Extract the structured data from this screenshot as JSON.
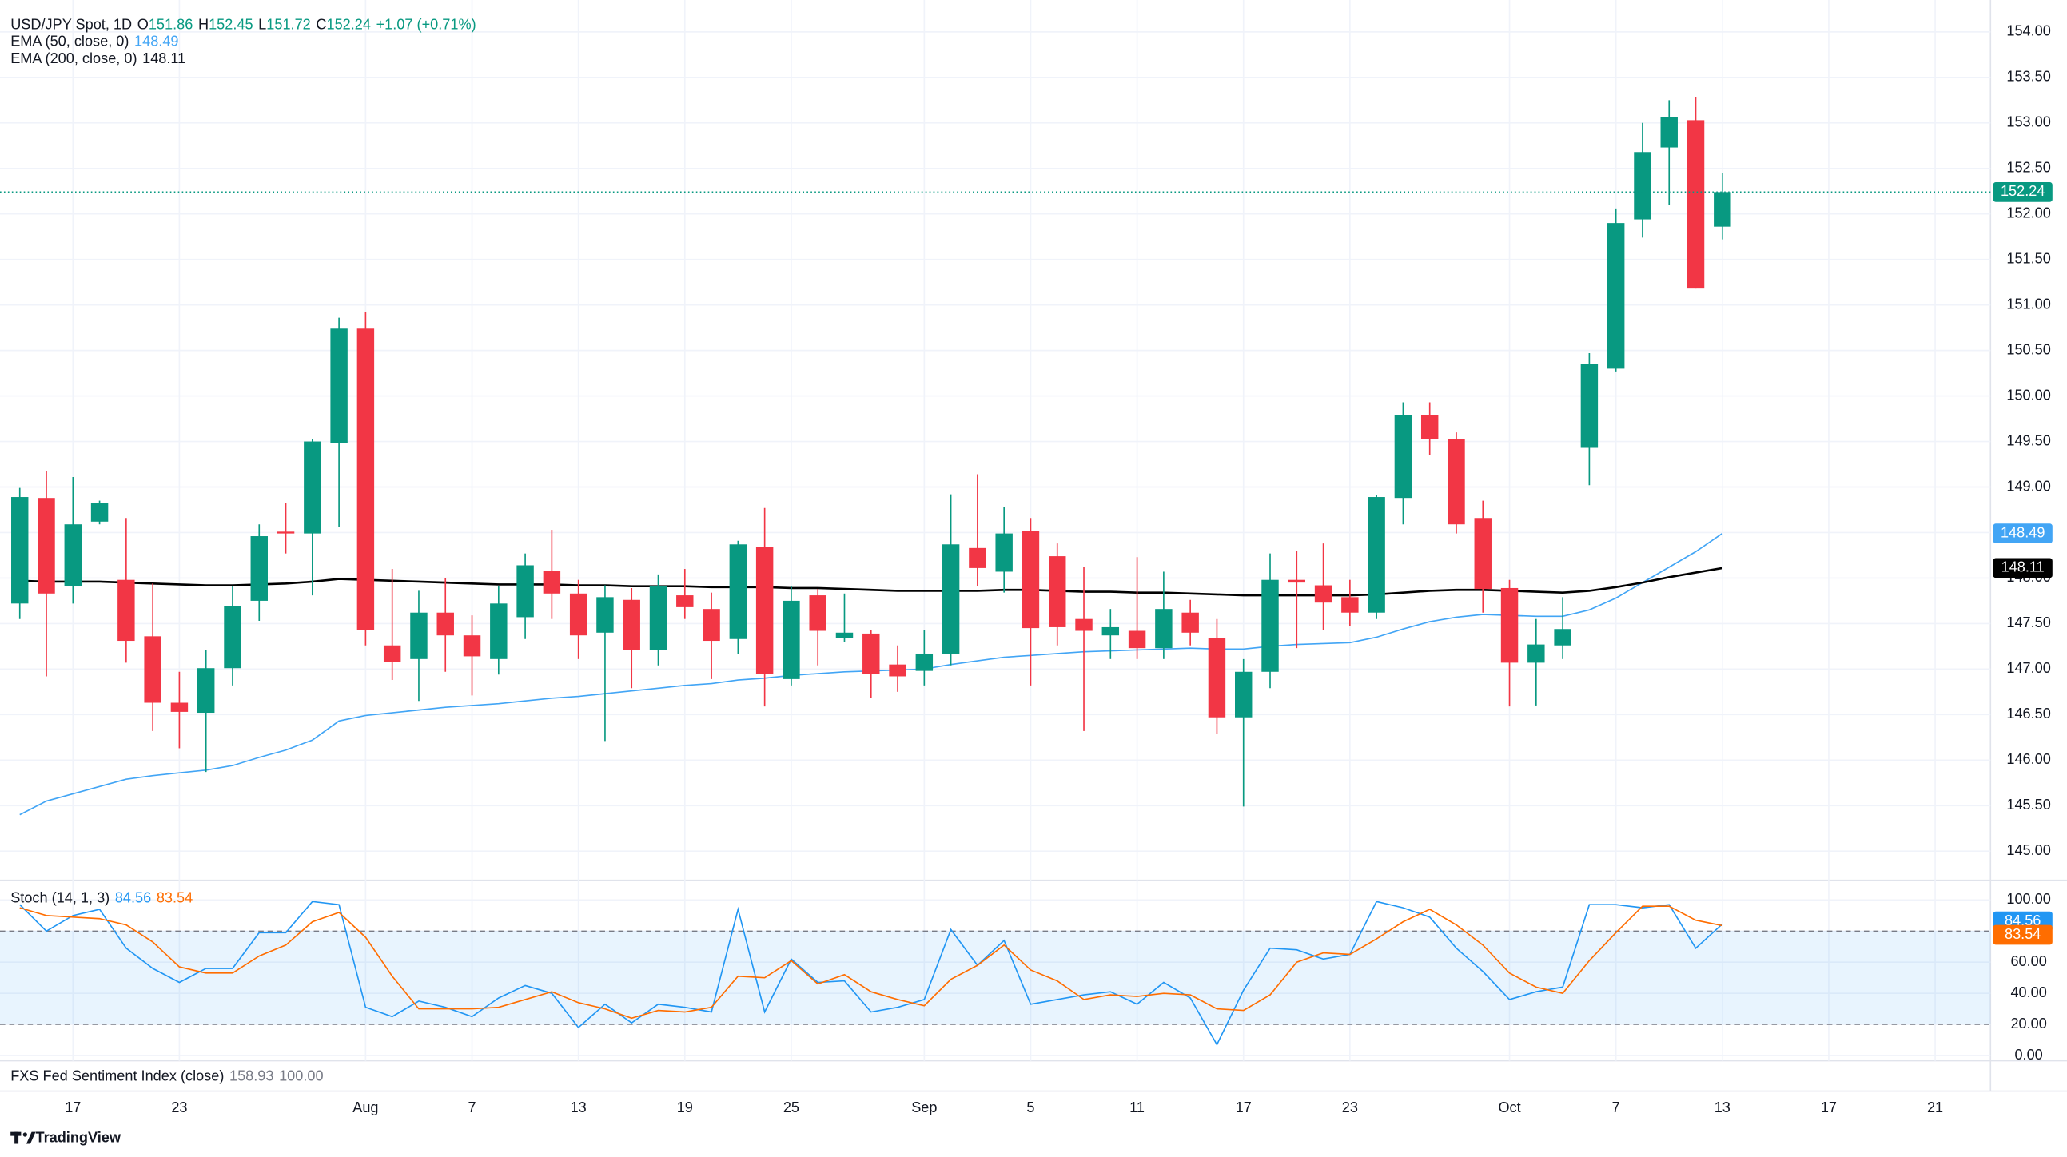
{
  "chart_data": {
    "type": "candlestick",
    "title": "USD/JPY Spot, 1D",
    "ohlc_prefixes": [
      "O",
      "H",
      "L",
      "C"
    ],
    "change": "+1.07 (+0.71%)",
    "up_color": "#089981",
    "down_color": "#f23645",
    "candles": {
      "open": [
        147.72,
        148.88,
        147.91,
        148.62,
        147.98,
        147.36,
        146.63,
        146.52,
        147.01,
        147.75,
        148.51,
        148.49,
        149.48,
        150.74,
        147.26,
        147.11,
        147.62,
        147.37,
        147.11,
        147.57,
        148.08,
        147.83,
        147.4,
        147.76,
        147.21,
        147.81,
        147.66,
        147.33,
        148.34,
        146.89,
        147.81,
        147.34,
        147.39,
        147.05,
        146.98,
        147.17,
        148.33,
        148.07,
        148.52,
        148.24,
        147.55,
        147.37,
        147.42,
        147.23,
        147.62,
        147.34,
        146.47,
        146.97,
        147.98,
        147.92,
        147.79,
        147.62,
        148.88,
        149.79,
        149.53,
        148.66,
        147.89,
        147.07,
        147.26,
        149.43,
        150.3,
        151.94,
        152.73,
        153.03,
        151.86
      ],
      "high": [
        148.99,
        149.18,
        149.11,
        148.85,
        148.66,
        147.94,
        146.97,
        147.21,
        147.91,
        148.59,
        148.82,
        149.53,
        150.86,
        150.92,
        148.1,
        147.86,
        148.0,
        147.59,
        147.91,
        148.27,
        148.53,
        147.98,
        147.92,
        147.89,
        148.04,
        148.1,
        147.84,
        148.41,
        148.77,
        147.91,
        147.88,
        147.83,
        147.43,
        147.26,
        147.43,
        148.92,
        149.14,
        148.78,
        148.66,
        148.38,
        148.12,
        147.66,
        148.23,
        148.07,
        147.76,
        147.55,
        147.11,
        148.27,
        148.3,
        148.38,
        147.98,
        148.91,
        149.93,
        149.93,
        149.6,
        148.85,
        147.98,
        147.55,
        147.79,
        150.47,
        152.06,
        153.0,
        153.25,
        153.28,
        152.45
      ],
      "low": [
        147.55,
        146.92,
        147.72,
        148.59,
        147.07,
        146.32,
        146.13,
        145.87,
        146.82,
        147.53,
        148.27,
        147.81,
        148.56,
        147.26,
        146.88,
        146.65,
        146.97,
        146.71,
        146.94,
        147.33,
        147.55,
        147.11,
        146.21,
        146.79,
        147.04,
        147.55,
        146.89,
        147.17,
        146.59,
        146.82,
        147.04,
        147.3,
        146.68,
        146.75,
        146.82,
        147.04,
        147.91,
        147.84,
        146.82,
        147.26,
        146.32,
        147.11,
        147.11,
        147.11,
        147.26,
        146.29,
        145.49,
        146.79,
        147.23,
        147.43,
        147.47,
        147.55,
        148.59,
        149.35,
        148.49,
        147.62,
        146.59,
        146.6,
        147.11,
        149.02,
        150.27,
        151.74,
        152.1,
        151.18,
        151.72
      ],
      "close": [
        148.89,
        147.83,
        148.59,
        148.82,
        147.31,
        146.63,
        146.53,
        147.01,
        147.69,
        148.46,
        148.49,
        149.5,
        150.74,
        147.43,
        147.08,
        147.62,
        147.37,
        147.14,
        147.72,
        148.14,
        147.83,
        147.37,
        147.79,
        147.21,
        147.91,
        147.68,
        147.31,
        148.37,
        146.95,
        147.75,
        147.42,
        147.4,
        146.95,
        146.92,
        147.17,
        148.37,
        148.11,
        148.49,
        147.45,
        147.46,
        147.42,
        147.46,
        147.23,
        147.66,
        147.4,
        146.47,
        146.97,
        147.98,
        147.95,
        147.73,
        147.62,
        148.89,
        149.79,
        149.53,
        148.59,
        147.88,
        147.07,
        147.27,
        147.44,
        150.35,
        151.9,
        152.68,
        153.06,
        151.18,
        152.24
      ]
    },
    "overlays": [
      {
        "name": "EMA (50, close, 0)",
        "color": "#42a5f5",
        "values": [
          145.4,
          145.55,
          145.63,
          145.71,
          145.79,
          145.83,
          145.86,
          145.89,
          145.94,
          146.03,
          146.11,
          146.22,
          146.43,
          146.49,
          146.52,
          146.55,
          146.58,
          146.6,
          146.62,
          146.65,
          146.68,
          146.7,
          146.73,
          146.76,
          146.79,
          146.82,
          146.84,
          146.88,
          146.9,
          146.93,
          146.95,
          146.97,
          146.98,
          146.99,
          147.0,
          147.05,
          147.09,
          147.13,
          147.15,
          147.17,
          147.19,
          147.2,
          147.21,
          147.22,
          147.23,
          147.22,
          147.22,
          147.25,
          147.27,
          147.28,
          147.29,
          147.35,
          147.44,
          147.52,
          147.57,
          147.6,
          147.59,
          147.58,
          147.58,
          147.65,
          147.78,
          147.95,
          148.12,
          148.29,
          148.49
        ]
      },
      {
        "name": "EMA (200, close, 0)",
        "color": "#000000",
        "values": [
          147.97,
          147.96,
          147.96,
          147.96,
          147.95,
          147.94,
          147.93,
          147.92,
          147.92,
          147.93,
          147.94,
          147.96,
          147.99,
          147.98,
          147.97,
          147.96,
          147.95,
          147.94,
          147.93,
          147.93,
          147.93,
          147.92,
          147.92,
          147.91,
          147.91,
          147.91,
          147.9,
          147.9,
          147.9,
          147.89,
          147.89,
          147.88,
          147.87,
          147.86,
          147.86,
          147.86,
          147.86,
          147.87,
          147.87,
          147.86,
          147.85,
          147.85,
          147.84,
          147.84,
          147.83,
          147.82,
          147.81,
          147.81,
          147.81,
          147.81,
          147.81,
          147.82,
          147.84,
          147.86,
          147.87,
          147.87,
          147.86,
          147.85,
          147.84,
          147.86,
          147.9,
          147.95,
          148.01,
          148.06,
          148.11
        ]
      }
    ],
    "xlim": [
      -0.743,
      74.08
    ],
    "xticks": [
      {
        "value": 2,
        "label": "17"
      },
      {
        "value": 6,
        "label": "23"
      },
      {
        "value": 13,
        "label": "Aug"
      },
      {
        "value": 17,
        "label": "7"
      },
      {
        "value": 21,
        "label": "13"
      },
      {
        "value": 25,
        "label": "19"
      },
      {
        "value": 29,
        "label": "25"
      },
      {
        "value": 34,
        "label": "Sep"
      },
      {
        "value": 38,
        "label": "5"
      },
      {
        "value": 42,
        "label": "11"
      },
      {
        "value": 46,
        "label": "17"
      },
      {
        "value": 50,
        "label": "23"
      },
      {
        "value": 56,
        "label": "Oct"
      },
      {
        "value": 60,
        "label": "7"
      },
      {
        "value": 64,
        "label": "13"
      },
      {
        "value": 68,
        "label": "17"
      },
      {
        "value": 72,
        "label": "21"
      }
    ],
    "ylim": [
      144.68,
      154.35
    ],
    "yticks": [
      {
        "value": 145,
        "label": "145.00"
      },
      {
        "value": 145.5,
        "label": "145.50"
      },
      {
        "value": 146,
        "label": "146.00"
      },
      {
        "value": 146.5,
        "label": "146.50"
      },
      {
        "value": 147,
        "label": "147.00"
      },
      {
        "value": 147.5,
        "label": "147.50"
      },
      {
        "value": 148,
        "label": "148.00"
      },
      {
        "value": 148.5,
        "label": "148.50"
      },
      {
        "value": 149,
        "label": "149.00"
      },
      {
        "value": 149.5,
        "label": "149.50"
      },
      {
        "value": 150,
        "label": "150.00"
      },
      {
        "value": 150.5,
        "label": "150.50"
      },
      {
        "value": 151,
        "label": "151.00"
      },
      {
        "value": 151.5,
        "label": "151.50"
      },
      {
        "value": 152,
        "label": "152.00"
      },
      {
        "value": 152.5,
        "label": "152.50"
      },
      {
        "value": 153,
        "label": "153.00"
      },
      {
        "value": 153.5,
        "label": "153.50"
      },
      {
        "value": 154,
        "label": "154.00"
      }
    ],
    "grid": true,
    "stochastic": {
      "name": "Stoch (14, 1, 3)",
      "band": [
        20,
        80
      ],
      "band_color": "#2196f3",
      "ylim": [
        -3.4,
        112.7
      ],
      "yticks": [
        {
          "value": 0,
          "label": "0.00"
        },
        {
          "value": 20,
          "label": "20.00"
        },
        {
          "value": 40,
          "label": "40.00"
        },
        {
          "value": 60,
          "label": "60.00"
        },
        {
          "value": 80,
          "label": "80.00"
        },
        {
          "value": 100,
          "label": "100.00"
        }
      ],
      "series": [
        {
          "color": "#2196f3",
          "values": [
            97,
            80,
            90,
            94,
            69,
            56,
            47,
            56,
            56,
            79,
            79,
            99,
            97,
            31,
            25,
            35,
            31,
            25,
            37,
            45,
            40,
            18,
            33,
            21,
            33,
            31,
            28,
            94,
            28,
            62,
            47,
            48,
            28,
            31,
            36,
            81,
            58,
            74,
            33,
            36,
            39,
            41,
            33,
            47,
            37,
            7,
            42,
            69,
            68,
            62,
            65,
            99,
            95,
            89,
            69,
            54,
            36,
            41,
            44,
            97,
            97,
            95,
            97,
            69,
            84.56
          ]
        },
        {
          "color": "#ff6d00",
          "values": [
            95,
            90,
            89,
            88,
            84,
            73,
            57,
            53,
            53,
            64,
            71,
            86,
            92,
            76,
            51,
            30,
            30,
            30,
            31,
            36,
            41,
            34,
            30,
            24,
            29,
            28,
            31,
            51,
            50,
            61,
            46,
            52,
            41,
            36,
            32,
            49,
            58,
            71,
            55,
            48,
            36,
            39,
            38,
            40,
            39,
            30,
            29,
            39,
            60,
            66,
            65,
            75,
            86,
            94,
            84,
            71,
            53,
            44,
            40,
            61,
            79,
            96,
            96,
            87,
            83.54
          ]
        }
      ]
    },
    "sentiment": {
      "name": "FXS Fed Sentiment Index (close)",
      "value": 158.93,
      "value2": "100.00"
    },
    "brand": "TradingView"
  }
}
